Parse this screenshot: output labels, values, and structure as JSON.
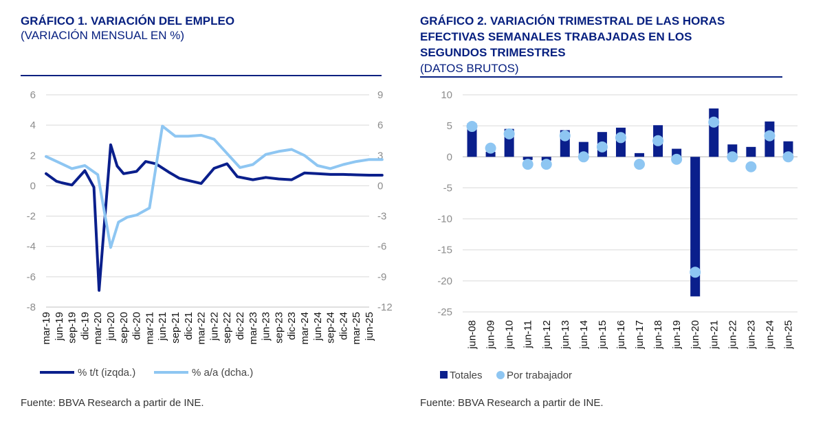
{
  "chart_data": [
    {
      "type": "line",
      "title": "GRÁFICO 1. VARIACIÓN DEL EMPLEO",
      "subtitle": "(VARIACIÓN MENSUAL EN %)",
      "source": "Fuente: BBVA Research a partir de INE.",
      "categories": [
        "mar-19",
        "jun-19",
        "sep-19",
        "dic-19",
        "mar-20",
        "jun-20",
        "sep-20",
        "dic-20",
        "mar-21",
        "jun-21",
        "sep-21",
        "dic-21",
        "mar-22",
        "jun-22",
        "sep-22",
        "dic-22",
        "mar-23",
        "jun-23",
        "sep-23",
        "dic-23",
        "mar-24",
        "jun-24",
        "sep-24",
        "dic-24",
        "mar-25",
        "jun-25"
      ],
      "y_left": {
        "min": -8,
        "max": 6,
        "ticks": [
          "6",
          "4",
          "2",
          "0",
          "-2",
          "-4",
          "-6",
          "-8"
        ]
      },
      "y_right": {
        "min": -12,
        "max": 9,
        "ticks": [
          "9",
          "6",
          "3",
          "0",
          "-3",
          "-6",
          "-9",
          "-12"
        ]
      },
      "series": [
        {
          "name": "% t/t (izqda.)",
          "axis": "left",
          "color": "#0a1f8c",
          "x": [
            0,
            0.8,
            1.2,
            2.0,
            3.0,
            3.7,
            4.1,
            5.0,
            5.5,
            6.0,
            7.0,
            7.7,
            8.5,
            9.5,
            10.3,
            11.0,
            12.0,
            13.0,
            14.0,
            14.8,
            16.0,
            17.0,
            18.0,
            19.0,
            20.0,
            21.0,
            22.0,
            23.0,
            24.0,
            25.0,
            26.0
          ],
          "y": [
            0.8,
            0.3,
            0.2,
            0.05,
            1.0,
            -0.1,
            -6.9,
            2.7,
            1.3,
            0.8,
            0.95,
            1.6,
            1.45,
            0.9,
            0.5,
            0.35,
            0.15,
            1.15,
            1.45,
            0.6,
            0.4,
            0.55,
            0.45,
            0.4,
            0.85,
            0.8,
            0.75,
            0.75,
            0.72,
            0.7,
            0.7
          ]
        },
        {
          "name": "% a/a (dcha.)",
          "axis": "right",
          "color": "#8ec6f2",
          "x": [
            0,
            1.0,
            2.0,
            3.0,
            4.0,
            5.0,
            5.6,
            6.3,
            7.0,
            8.0,
            9.0,
            10.0,
            11.0,
            12.0,
            13.0,
            14.0,
            15.0,
            16.0,
            17.0,
            18.0,
            19.0,
            20.0,
            21.0,
            22.0,
            23.0,
            24.0,
            25.0,
            26.0
          ],
          "y": [
            2.9,
            2.3,
            1.7,
            2.0,
            1.1,
            -6.1,
            -3.6,
            -3.1,
            -2.9,
            -2.2,
            5.9,
            4.9,
            4.9,
            5.0,
            4.6,
            3.2,
            1.8,
            2.1,
            3.1,
            3.4,
            3.6,
            3.0,
            2.0,
            1.7,
            2.1,
            2.4,
            2.6,
            2.6
          ]
        }
      ]
    },
    {
      "type": "bar",
      "title_lines": [
        "GRÁFICO 2. VARIACIÓN TRIMESTRAL DE LAS HORAS",
        "EFECTIVAS SEMANALES TRABAJADAS EN LOS",
        "SEGUNDOS TRIMESTRES"
      ],
      "subtitle": "(DATOS BRUTOS)",
      "source": "Fuente: BBVA Research a partir de INE.",
      "categories": [
        "jun-08",
        "jun-09",
        "jun-10",
        "jun-11",
        "jun-12",
        "jun-13",
        "jun-14",
        "jun-15",
        "jun-16",
        "jun-17",
        "jun-18",
        "jun-19",
        "jun-20",
        "jun-21",
        "jun-22",
        "jun-23",
        "jun-24",
        "jun-25"
      ],
      "y": {
        "min": -25,
        "max": 10,
        "ticks": [
          "10",
          "5",
          "0",
          "-5",
          "-10",
          "-15",
          "-20",
          "-25"
        ]
      },
      "series": [
        {
          "name": "Totales",
          "kind": "bar",
          "color": "#0a1f8c",
          "values": [
            5.4,
            0.8,
            4.5,
            -0.5,
            -0.6,
            4.3,
            2.4,
            4.0,
            4.7,
            0.6,
            5.1,
            1.3,
            -22.5,
            7.8,
            2.0,
            1.6,
            5.7,
            2.5
          ]
        },
        {
          "name": "Por trabajador",
          "kind": "dot",
          "color": "#8ec6f2",
          "values": [
            4.9,
            1.4,
            3.7,
            -1.2,
            -1.2,
            3.4,
            0.0,
            1.6,
            3.1,
            -1.2,
            2.6,
            -0.4,
            -18.6,
            5.6,
            0.0,
            -1.6,
            3.4,
            0.0
          ]
        }
      ]
    }
  ]
}
